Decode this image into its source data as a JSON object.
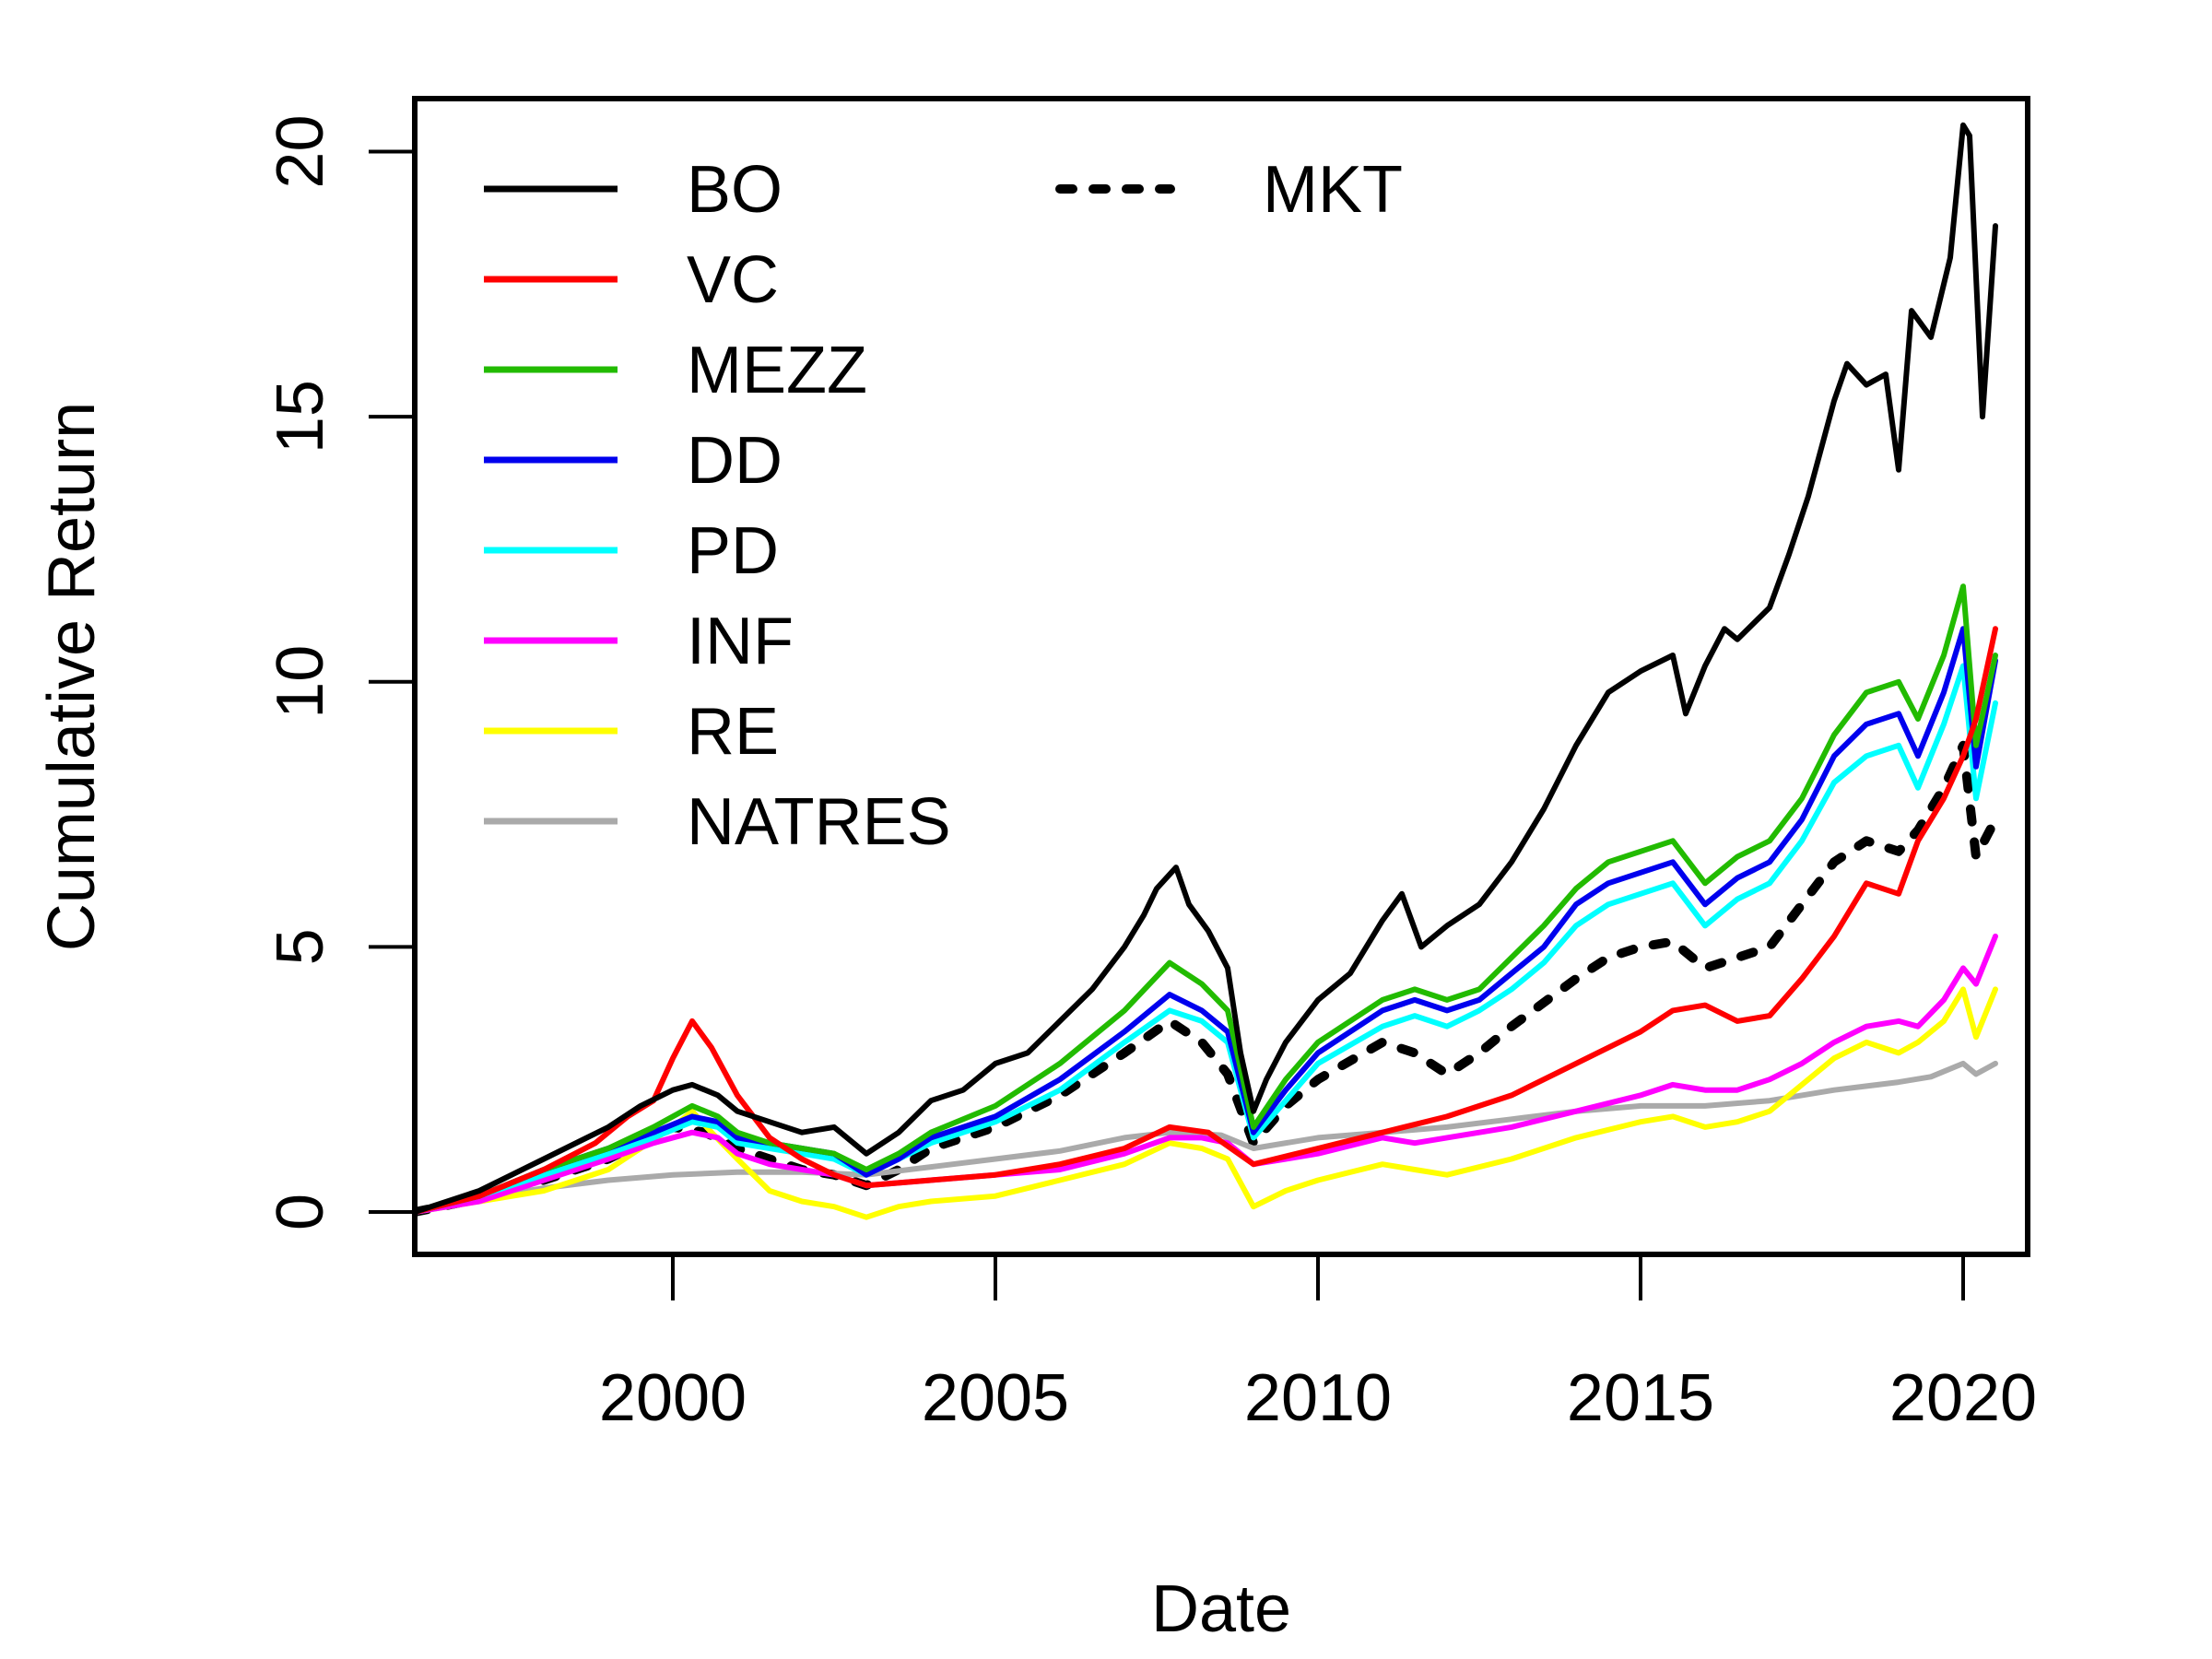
{
  "chart_data": {
    "type": "line",
    "xlabel": "Date",
    "ylabel": "Cumulative Return",
    "xlim": [
      1996.0,
      2021.0
    ],
    "ylim": [
      -0.8,
      21.0
    ],
    "x_ticks": [
      2000,
      2005,
      2010,
      2015,
      2020
    ],
    "x_tick_labels": [
      "2000",
      "2005",
      "2010",
      "2015",
      "2020"
    ],
    "y_ticks": [
      0,
      5,
      10,
      15,
      20
    ],
    "y_tick_labels": [
      "0",
      "5",
      "10",
      "15",
      "20"
    ],
    "grid": false,
    "legend_position": "top-left",
    "series": [
      {
        "name": "BO",
        "color": "#000000",
        "dash": false,
        "x": [
          1996.0,
          1997.0,
          1998.0,
          1999.0,
          1999.5,
          2000.0,
          2000.3,
          2000.7,
          2001.0,
          2001.5,
          2002.0,
          2002.5,
          2003.0,
          2003.5,
          2004.0,
          2004.5,
          2005.0,
          2005.5,
          2006.0,
          2006.5,
          2007.0,
          2007.3,
          2007.5,
          2007.8,
          2008.0,
          2008.3,
          2008.6,
          2008.8,
          2009.0,
          2009.2,
          2009.5,
          2010.0,
          2010.5,
          2011.0,
          2011.3,
          2011.6,
          2012.0,
          2012.5,
          2013.0,
          2013.5,
          2014.0,
          2014.5,
          2015.0,
          2015.5,
          2015.7,
          2016.0,
          2016.3,
          2016.5,
          2017.0,
          2017.3,
          2017.6,
          2018.0,
          2018.2,
          2018.5,
          2018.8,
          2019.0,
          2019.2,
          2019.5,
          2019.8,
          2020.0,
          2020.1,
          2020.3,
          2020.5
        ],
        "y": [
          0,
          0.4,
          1.0,
          1.6,
          2.0,
          2.3,
          2.4,
          2.2,
          1.9,
          1.7,
          1.5,
          1.6,
          1.1,
          1.5,
          2.1,
          2.3,
          2.8,
          3.0,
          3.6,
          4.2,
          5.0,
          5.6,
          6.1,
          6.5,
          5.8,
          5.3,
          4.6,
          3.0,
          1.9,
          2.5,
          3.2,
          4.0,
          4.5,
          5.5,
          6.0,
          5.0,
          5.4,
          5.8,
          6.6,
          7.6,
          8.8,
          9.8,
          10.2,
          10.5,
          9.4,
          10.3,
          11.0,
          10.8,
          11.4,
          12.4,
          13.5,
          15.3,
          16.0,
          15.6,
          15.8,
          14.0,
          17.0,
          16.5,
          18.0,
          20.5,
          20.3,
          15.0,
          18.6
        ]
      },
      {
        "name": "VC",
        "color": "#ff0000",
        "dash": false,
        "x": [
          1996.0,
          1997.0,
          1998.0,
          1998.8,
          1999.3,
          1999.7,
          2000.0,
          2000.3,
          2000.6,
          2001.0,
          2001.5,
          2002.0,
          2002.5,
          2003.0,
          2004.0,
          2005.0,
          2006.0,
          2007.0,
          2007.7,
          2008.3,
          2009.0,
          2010.0,
          2011.0,
          2012.0,
          2013.0,
          2014.0,
          2015.0,
          2015.5,
          2016.0,
          2016.5,
          2017.0,
          2017.5,
          2018.0,
          2018.5,
          2019.0,
          2019.3,
          2019.7,
          2020.0,
          2020.2,
          2020.5
        ],
        "y": [
          0,
          0.3,
          0.8,
          1.3,
          1.8,
          2.1,
          2.9,
          3.6,
          3.1,
          2.2,
          1.4,
          1.0,
          0.7,
          0.5,
          0.6,
          0.7,
          0.9,
          1.2,
          1.6,
          1.5,
          0.9,
          1.2,
          1.5,
          1.8,
          2.2,
          2.8,
          3.4,
          3.8,
          3.9,
          3.6,
          3.7,
          4.4,
          5.2,
          6.2,
          6.0,
          7.0,
          7.8,
          8.6,
          9.3,
          11.0
        ]
      },
      {
        "name": "MEZZ",
        "color": "#22bb00",
        "dash": false,
        "x": [
          1996.0,
          1997.0,
          1998.0,
          1999.0,
          1999.7,
          2000.3,
          2000.7,
          2001.0,
          2001.5,
          2002.0,
          2002.5,
          2003.0,
          2003.5,
          2004.0,
          2005.0,
          2006.0,
          2007.0,
          2007.7,
          2008.2,
          2008.6,
          2009.0,
          2009.5,
          2010.0,
          2011.0,
          2011.5,
          2012.0,
          2012.5,
          2013.0,
          2013.5,
          2014.0,
          2014.5,
          2015.0,
          2015.5,
          2016.0,
          2016.5,
          2017.0,
          2017.5,
          2018.0,
          2018.5,
          2019.0,
          2019.3,
          2019.7,
          2020.0,
          2020.2,
          2020.5
        ],
        "y": [
          0,
          0.3,
          0.8,
          1.2,
          1.6,
          2.0,
          1.8,
          1.5,
          1.3,
          1.2,
          1.1,
          0.8,
          1.1,
          1.5,
          2.0,
          2.8,
          3.8,
          4.7,
          4.3,
          3.8,
          1.6,
          2.5,
          3.2,
          4.0,
          4.2,
          4.0,
          4.2,
          4.8,
          5.4,
          6.1,
          6.6,
          6.8,
          7.0,
          6.2,
          6.7,
          7.0,
          7.8,
          9.0,
          9.8,
          10.0,
          9.3,
          10.5,
          11.8,
          8.8,
          10.5
        ]
      },
      {
        "name": "DD",
        "color": "#0000ee",
        "dash": false,
        "x": [
          1996.0,
          1997.0,
          1998.0,
          1999.0,
          1999.7,
          2000.3,
          2000.7,
          2001.0,
          2001.5,
          2002.0,
          2002.5,
          2003.0,
          2003.5,
          2004.0,
          2005.0,
          2006.0,
          2007.0,
          2007.7,
          2008.2,
          2008.6,
          2009.0,
          2009.5,
          2010.0,
          2011.0,
          2011.5,
          2012.0,
          2012.5,
          2013.0,
          2013.5,
          2014.0,
          2014.5,
          2015.0,
          2015.5,
          2016.0,
          2016.5,
          2017.0,
          2017.5,
          2018.0,
          2018.5,
          2019.0,
          2019.3,
          2019.7,
          2020.0,
          2020.2,
          2020.5
        ],
        "y": [
          0,
          0.3,
          0.8,
          1.2,
          1.5,
          1.8,
          1.7,
          1.4,
          1.3,
          1.2,
          1.1,
          0.7,
          1.0,
          1.4,
          1.8,
          2.5,
          3.4,
          4.1,
          3.8,
          3.4,
          1.5,
          2.3,
          3.0,
          3.8,
          4.0,
          3.8,
          4.0,
          4.5,
          5.0,
          5.8,
          6.2,
          6.4,
          6.6,
          5.8,
          6.3,
          6.6,
          7.4,
          8.6,
          9.2,
          9.4,
          8.6,
          9.8,
          11.0,
          8.4,
          10.4
        ]
      },
      {
        "name": "PD",
        "color": "#00ffff",
        "dash": false,
        "x": [
          1996.0,
          1997.0,
          1998.0,
          1999.0,
          1999.7,
          2000.3,
          2000.7,
          2001.0,
          2001.5,
          2002.0,
          2002.5,
          2003.0,
          2003.5,
          2004.0,
          2005.0,
          2006.0,
          2007.0,
          2007.7,
          2008.2,
          2008.6,
          2009.0,
          2009.5,
          2010.0,
          2011.0,
          2011.5,
          2012.0,
          2012.5,
          2013.0,
          2013.5,
          2014.0,
          2014.5,
          2015.0,
          2015.5,
          2016.0,
          2016.5,
          2017.0,
          2017.5,
          2018.0,
          2018.5,
          2019.0,
          2019.3,
          2019.7,
          2020.0,
          2020.2,
          2020.5
        ],
        "y": [
          0,
          0.3,
          0.7,
          1.1,
          1.4,
          1.7,
          1.6,
          1.3,
          1.2,
          1.1,
          1.0,
          0.7,
          1.0,
          1.3,
          1.7,
          2.3,
          3.2,
          3.8,
          3.6,
          3.2,
          1.4,
          2.1,
          2.8,
          3.5,
          3.7,
          3.5,
          3.8,
          4.2,
          4.7,
          5.4,
          5.8,
          6.0,
          6.2,
          5.4,
          5.9,
          6.2,
          7.0,
          8.1,
          8.6,
          8.8,
          8.0,
          9.2,
          10.3,
          7.8,
          9.6
        ]
      },
      {
        "name": "INF",
        "color": "#ff00ff",
        "dash": false,
        "x": [
          1996.0,
          1997.0,
          1998.0,
          1999.0,
          1999.7,
          2000.3,
          2000.7,
          2001.0,
          2001.5,
          2002.0,
          2002.5,
          2003.0,
          2004.0,
          2005.0,
          2006.0,
          2007.0,
          2007.7,
          2008.2,
          2008.6,
          2009.0,
          2009.5,
          2010.0,
          2011.0,
          2011.5,
          2012.0,
          2013.0,
          2014.0,
          2015.0,
          2015.5,
          2016.0,
          2016.5,
          2017.0,
          2017.5,
          2018.0,
          2018.5,
          2019.0,
          2019.3,
          2019.7,
          2020.0,
          2020.2,
          2020.5
        ],
        "y": [
          0,
          0.2,
          0.6,
          1.0,
          1.3,
          1.5,
          1.4,
          1.1,
          0.9,
          0.8,
          0.7,
          0.5,
          0.6,
          0.7,
          0.8,
          1.1,
          1.4,
          1.4,
          1.3,
          0.9,
          1.0,
          1.1,
          1.4,
          1.3,
          1.4,
          1.6,
          1.9,
          2.2,
          2.4,
          2.3,
          2.3,
          2.5,
          2.8,
          3.2,
          3.5,
          3.6,
          3.5,
          4.0,
          4.6,
          4.3,
          5.2
        ]
      },
      {
        "name": "RE",
        "color": "#ffff00",
        "dash": false,
        "x": [
          1996.0,
          1997.0,
          1998.0,
          1999.0,
          1999.5,
          2000.0,
          2000.3,
          2000.6,
          2001.0,
          2001.5,
          2002.0,
          2002.5,
          2003.0,
          2003.5,
          2004.0,
          2005.0,
          2006.0,
          2007.0,
          2007.7,
          2008.2,
          2008.6,
          2009.0,
          2009.5,
          2010.0,
          2011.0,
          2011.5,
          2012.0,
          2013.0,
          2014.0,
          2015.0,
          2015.5,
          2016.0,
          2016.5,
          2017.0,
          2017.5,
          2018.0,
          2018.5,
          2019.0,
          2019.3,
          2019.7,
          2020.0,
          2020.2,
          2020.5
        ],
        "y": [
          0,
          0.2,
          0.4,
          0.8,
          1.2,
          1.6,
          1.9,
          1.5,
          1.0,
          0.4,
          0.2,
          0.1,
          -0.1,
          0.1,
          0.2,
          0.3,
          0.6,
          0.9,
          1.3,
          1.2,
          1.0,
          0.1,
          0.4,
          0.6,
          0.9,
          0.8,
          0.7,
          1.0,
          1.4,
          1.7,
          1.8,
          1.6,
          1.7,
          1.9,
          2.4,
          2.9,
          3.2,
          3.0,
          3.2,
          3.6,
          4.2,
          3.3,
          4.2
        ]
      },
      {
        "name": "NATRES",
        "color": "#aaaaaa",
        "dash": false,
        "x": [
          1996.0,
          1997.0,
          1998.0,
          1999.0,
          2000.0,
          2001.0,
          2002.0,
          2003.0,
          2004.0,
          2005.0,
          2006.0,
          2007.0,
          2007.7,
          2008.5,
          2009.0,
          2010.0,
          2011.0,
          2012.0,
          2013.0,
          2014.0,
          2015.0,
          2016.0,
          2017.0,
          2018.0,
          2019.0,
          2019.5,
          2020.0,
          2020.2,
          2020.5
        ],
        "y": [
          0,
          0.25,
          0.45,
          0.6,
          0.7,
          0.75,
          0.75,
          0.7,
          0.85,
          1.0,
          1.15,
          1.4,
          1.5,
          1.45,
          1.2,
          1.4,
          1.5,
          1.6,
          1.75,
          1.9,
          2.0,
          2.0,
          2.1,
          2.3,
          2.45,
          2.55,
          2.8,
          2.6,
          2.8
        ]
      },
      {
        "name": "MKT",
        "color": "#000000",
        "dash": true,
        "x": [
          1996.0,
          1997.0,
          1998.0,
          1999.0,
          1999.5,
          2000.0,
          2000.5,
          2001.0,
          2001.5,
          2002.0,
          2002.5,
          2003.0,
          2003.5,
          2004.0,
          2005.0,
          2006.0,
          2007.0,
          2007.7,
          2008.2,
          2008.6,
          2009.0,
          2009.5,
          2010.0,
          2011.0,
          2011.5,
          2012.0,
          2012.5,
          2013.0,
          2014.0,
          2014.5,
          2015.0,
          2015.5,
          2016.0,
          2016.5,
          2017.0,
          2017.5,
          2018.0,
          2018.5,
          2019.0,
          2019.3,
          2019.7,
          2020.0,
          2020.2,
          2020.5
        ],
        "y": [
          0,
          0.25,
          0.6,
          1.0,
          1.3,
          1.6,
          1.5,
          1.2,
          1.0,
          0.8,
          0.7,
          0.5,
          0.8,
          1.2,
          1.6,
          2.2,
          3.0,
          3.6,
          3.2,
          2.6,
          1.3,
          2.0,
          2.5,
          3.2,
          3.0,
          2.6,
          3.0,
          3.5,
          4.4,
          4.8,
          5.0,
          5.1,
          4.6,
          4.8,
          5.0,
          5.8,
          6.6,
          7.0,
          6.8,
          7.2,
          8.0,
          8.8,
          6.7,
          7.4
        ]
      }
    ]
  }
}
